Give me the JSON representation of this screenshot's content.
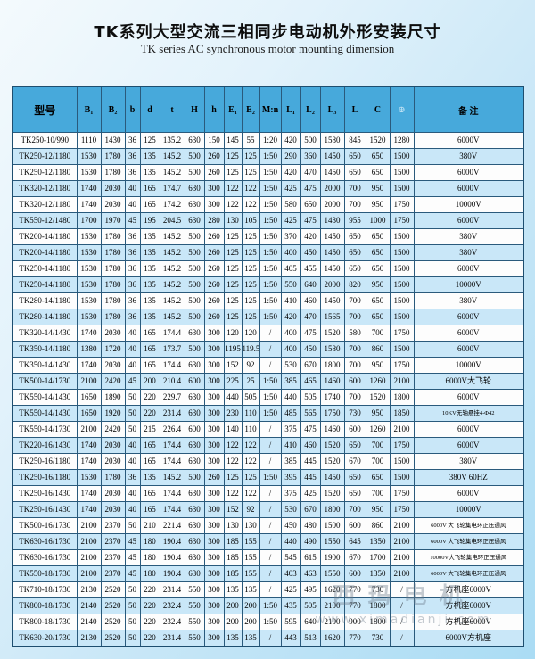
{
  "title": "TK系列大型交流三相同步电动机外形安装尺寸",
  "subtitle": "TK series AC synchronous motor mounting dimension",
  "watermark": {
    "line1": "西玛电机",
    "line2": "www.ximadianji.com"
  },
  "table": {
    "headers": [
      "型号",
      "B₁",
      "B₂",
      "b",
      "d",
      "t",
      "H",
      "h",
      "E₁",
      "E₂",
      "M:n",
      "L₁",
      "L₂",
      "L₃",
      "L",
      "C",
      "⊕",
      "备  注"
    ],
    "rows": [
      [
        "TK250-10/990",
        "1110",
        "1430",
        "36",
        "125",
        "135.2",
        "630",
        "150",
        "145",
        "55",
        "1:20",
        "420",
        "500",
        "1580",
        "845",
        "1520",
        "1280",
        "6000V"
      ],
      [
        "TK250-12/1180",
        "1530",
        "1780",
        "36",
        "135",
        "145.2",
        "500",
        "260",
        "125",
        "125",
        "1:50",
        "290",
        "360",
        "1450",
        "650",
        "650",
        "1500",
        "380V"
      ],
      [
        "TK250-12/1180",
        "1530",
        "1780",
        "36",
        "135",
        "145.2",
        "500",
        "260",
        "125",
        "125",
        "1:50",
        "420",
        "470",
        "1450",
        "650",
        "650",
        "1500",
        "6000V"
      ],
      [
        "TK320-12/1180",
        "1740",
        "2030",
        "40",
        "165",
        "174.7",
        "630",
        "300",
        "122",
        "122",
        "1:50",
        "425",
        "475",
        "2000",
        "700",
        "950",
        "1500",
        "6000V"
      ],
      [
        "TK320-12/1180",
        "1740",
        "2030",
        "40",
        "165",
        "174.2",
        "630",
        "300",
        "122",
        "122",
        "1:50",
        "580",
        "650",
        "2000",
        "700",
        "950",
        "1750",
        "10000V"
      ],
      [
        "TK550-12/1480",
        "1700",
        "1970",
        "45",
        "195",
        "204.5",
        "630",
        "280",
        "130",
        "105",
        "1:50",
        "425",
        "475",
        "1430",
        "955",
        "1000",
        "1750",
        "6000V"
      ],
      [
        "TK200-14/1180",
        "1530",
        "1780",
        "36",
        "135",
        "145.2",
        "500",
        "260",
        "125",
        "125",
        "1:50",
        "370",
        "420",
        "1450",
        "650",
        "650",
        "1500",
        "380V"
      ],
      [
        "TK200-14/1180",
        "1530",
        "1780",
        "36",
        "135",
        "145.2",
        "500",
        "260",
        "125",
        "125",
        "1:50",
        "400",
        "450",
        "1450",
        "650",
        "650",
        "1500",
        "380V"
      ],
      [
        "TK250-14/1180",
        "1530",
        "1780",
        "36",
        "135",
        "145.2",
        "500",
        "260",
        "125",
        "125",
        "1:50",
        "405",
        "455",
        "1450",
        "650",
        "650",
        "1500",
        "6000V"
      ],
      [
        "TK250-14/1180",
        "1530",
        "1780",
        "36",
        "135",
        "145.2",
        "500",
        "260",
        "125",
        "125",
        "1:50",
        "550",
        "640",
        "2000",
        "820",
        "950",
        "1500",
        "10000V"
      ],
      [
        "TK280-14/1180",
        "1530",
        "1780",
        "36",
        "135",
        "145.2",
        "500",
        "260",
        "125",
        "125",
        "1:50",
        "410",
        "460",
        "1450",
        "700",
        "650",
        "1500",
        "380V"
      ],
      [
        "TK280-14/1180",
        "1530",
        "1780",
        "36",
        "135",
        "145.2",
        "500",
        "260",
        "125",
        "125",
        "1:50",
        "420",
        "470",
        "1565",
        "700",
        "650",
        "1500",
        "6000V"
      ],
      [
        "TK320-14/1430",
        "1740",
        "2030",
        "40",
        "165",
        "174.4",
        "630",
        "300",
        "120",
        "120",
        "/",
        "400",
        "475",
        "1520",
        "580",
        "700",
        "1750",
        "6000V"
      ],
      [
        "TK350-14/1180",
        "1380",
        "1720",
        "40",
        "165",
        "173.7",
        "500",
        "300",
        "1195",
        "119.5",
        "/",
        "400",
        "450",
        "1580",
        "700",
        "860",
        "1500",
        "6000V"
      ],
      [
        "TK350-14/1430",
        "1740",
        "2030",
        "40",
        "165",
        "174.4",
        "630",
        "300",
        "152",
        "92",
        "/",
        "530",
        "670",
        "1800",
        "700",
        "950",
        "1750",
        "10000V"
      ],
      [
        "TK500-14/1730",
        "2100",
        "2420",
        "45",
        "200",
        "210.4",
        "600",
        "300",
        "225",
        "25",
        "1:50",
        "385",
        "465",
        "1460",
        "600",
        "1260",
        "2100",
        "6000V大飞轮"
      ],
      [
        "TK550-14/1430",
        "1650",
        "1890",
        "50",
        "220",
        "229.7",
        "630",
        "300",
        "440",
        "505",
        "1:50",
        "440",
        "505",
        "1740",
        "700",
        "1520",
        "1800",
        "6000V"
      ],
      [
        "TK550-14/1430",
        "1650",
        "1920",
        "50",
        "220",
        "231.4",
        "630",
        "300",
        "230",
        "110",
        "1:50",
        "485",
        "565",
        "1750",
        "730",
        "950",
        "1850",
        "10KV无轴悬挂4-Φ42"
      ],
      [
        "TK550-14/1730",
        "2100",
        "2420",
        "50",
        "215",
        "226.4",
        "600",
        "300",
        "140",
        "110",
        "/",
        "375",
        "475",
        "1460",
        "600",
        "1260",
        "2100",
        "6000V"
      ],
      [
        "TK220-16/1430",
        "1740",
        "2030",
        "40",
        "165",
        "174.4",
        "630",
        "300",
        "122",
        "122",
        "/",
        "410",
        "460",
        "1520",
        "650",
        "700",
        "1750",
        "6000V"
      ],
      [
        "TK250-16/1180",
        "1740",
        "2030",
        "40",
        "165",
        "174.4",
        "630",
        "300",
        "122",
        "122",
        "/",
        "385",
        "445",
        "1520",
        "670",
        "700",
        "1500",
        "380V"
      ],
      [
        "TK250-16/1180",
        "1530",
        "1780",
        "36",
        "135",
        "145.2",
        "500",
        "260",
        "125",
        "125",
        "1:50",
        "395",
        "445",
        "1450",
        "650",
        "650",
        "1500",
        "380V 60HZ"
      ],
      [
        "TK250-16/1430",
        "1740",
        "2030",
        "40",
        "165",
        "174.4",
        "630",
        "300",
        "122",
        "122",
        "/",
        "375",
        "425",
        "1520",
        "650",
        "700",
        "1750",
        "6000V"
      ],
      [
        "TK250-16/1430",
        "1740",
        "2030",
        "40",
        "165",
        "174.4",
        "630",
        "300",
        "152",
        "92",
        "/",
        "530",
        "670",
        "1800",
        "700",
        "950",
        "1750",
        "10000V"
      ],
      [
        "TK500-16/1730",
        "2100",
        "2370",
        "50",
        "210",
        "221.4",
        "630",
        "300",
        "130",
        "130",
        "/",
        "450",
        "480",
        "1500",
        "600",
        "860",
        "2100",
        "6000V 大飞轮集电环正压通风"
      ],
      [
        "TK630-16/1730",
        "2100",
        "2370",
        "45",
        "180",
        "190.4",
        "630",
        "300",
        "185",
        "155",
        "/",
        "440",
        "490",
        "1550",
        "645",
        "1350",
        "2100",
        "6000V 大飞轮集电环正压通风"
      ],
      [
        "TK630-16/1730",
        "2100",
        "2370",
        "45",
        "180",
        "190.4",
        "630",
        "300",
        "185",
        "155",
        "/",
        "545",
        "615",
        "1900",
        "670",
        "1700",
        "2100",
        "10000V大飞轮集电环正压通风"
      ],
      [
        "TK550-18/1730",
        "2100",
        "2370",
        "45",
        "180",
        "190.4",
        "630",
        "300",
        "185",
        "155",
        "/",
        "403",
        "463",
        "1550",
        "600",
        "1350",
        "2100",
        "6000V 大飞轮集电环正压通风"
      ],
      [
        "TK710-18/1730",
        "2130",
        "2520",
        "50",
        "220",
        "231.4",
        "550",
        "300",
        "135",
        "135",
        "/",
        "425",
        "495",
        "1620",
        "770",
        "730",
        "/",
        "方机座6000V"
      ],
      [
        "TK800-18/1730",
        "2140",
        "2520",
        "50",
        "220",
        "232.4",
        "550",
        "300",
        "200",
        "200",
        "1:50",
        "435",
        "505",
        "2100",
        "770",
        "1800",
        "/",
        "方机座6000V"
      ],
      [
        "TK800-18/1730",
        "2140",
        "2520",
        "50",
        "220",
        "232.4",
        "550",
        "300",
        "200",
        "200",
        "1:50",
        "595",
        "640",
        "2100",
        "900",
        "1800",
        "/",
        "方机座6000V"
      ],
      [
        "TK630-20/1730",
        "2130",
        "2520",
        "50",
        "220",
        "231.4",
        "550",
        "300",
        "135",
        "135",
        "/",
        "443",
        "513",
        "1620",
        "770",
        "730",
        "/",
        "6000V方机座"
      ]
    ]
  }
}
